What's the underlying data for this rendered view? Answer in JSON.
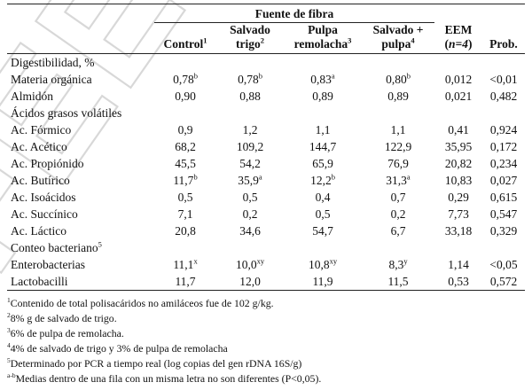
{
  "watermark": "FEED",
  "table": {
    "group_header": "Fuente de fibra",
    "columns": [
      {
        "text": "Control",
        "sup": "1"
      },
      {
        "text": "Salvado trigo",
        "line1": "Salvado",
        "line2": "trigo",
        "sup": "2"
      },
      {
        "text": "Pulpa remolacha",
        "line1": "Pulpa",
        "line2": "remolacha",
        "sup": "3"
      },
      {
        "text": "Salvado + pulpa",
        "line1": "Salvado +",
        "line2": "pulpa",
        "sup": "4"
      },
      {
        "text": "EEM (n=4)",
        "line1": "EEM",
        "line2": "n=4"
      },
      {
        "text": "Prob."
      }
    ],
    "sections": [
      {
        "title": "Digestibilidad, %",
        "title_sup": "",
        "rows": [
          {
            "label": "Materia orgánica",
            "cells": [
              {
                "v": "0,78",
                "s": "b"
              },
              {
                "v": "0,78",
                "s": "b"
              },
              {
                "v": "0,83",
                "s": "a"
              },
              {
                "v": "0,80",
                "s": "b"
              },
              {
                "v": "0,012",
                "s": ""
              },
              {
                "v": "<0,01",
                "s": ""
              }
            ]
          },
          {
            "label": "Almidón",
            "cells": [
              {
                "v": "0,90",
                "s": ""
              },
              {
                "v": "0,88",
                "s": ""
              },
              {
                "v": "0,89",
                "s": ""
              },
              {
                "v": "0,89",
                "s": ""
              },
              {
                "v": "0,021",
                "s": ""
              },
              {
                "v": "0,482",
                "s": ""
              }
            ]
          }
        ]
      },
      {
        "title": "Ácidos grasos volátiles",
        "title_sup": "",
        "rows": [
          {
            "label": "Ac. Fórmico",
            "cells": [
              {
                "v": "0,9",
                "s": ""
              },
              {
                "v": "1,2",
                "s": ""
              },
              {
                "v": "1,1",
                "s": ""
              },
              {
                "v": "1,1",
                "s": ""
              },
              {
                "v": "0,41",
                "s": ""
              },
              {
                "v": "0,924",
                "s": ""
              }
            ]
          },
          {
            "label": "Ac. Acético",
            "cells": [
              {
                "v": "68,2",
                "s": ""
              },
              {
                "v": "109,2",
                "s": ""
              },
              {
                "v": "144,7",
                "s": ""
              },
              {
                "v": "122,9",
                "s": ""
              },
              {
                "v": "35,95",
                "s": ""
              },
              {
                "v": "0,172",
                "s": ""
              }
            ]
          },
          {
            "label": "Ac. Propiónido",
            "cells": [
              {
                "v": "45,5",
                "s": ""
              },
              {
                "v": "54,2",
                "s": ""
              },
              {
                "v": "65,9",
                "s": ""
              },
              {
                "v": "76,9",
                "s": ""
              },
              {
                "v": "20,82",
                "s": ""
              },
              {
                "v": "0,234",
                "s": ""
              }
            ]
          },
          {
            "label": "Ac. Butírico",
            "cells": [
              {
                "v": "11,7",
                "s": "b"
              },
              {
                "v": "35,9",
                "s": "a"
              },
              {
                "v": "12,2",
                "s": "b"
              },
              {
                "v": "31,3",
                "s": "a"
              },
              {
                "v": "10,83",
                "s": ""
              },
              {
                "v": "0,027",
                "s": ""
              }
            ]
          },
          {
            "label": "Ac. Isoácidos",
            "cells": [
              {
                "v": "0,5",
                "s": ""
              },
              {
                "v": "0,5",
                "s": ""
              },
              {
                "v": "0,4",
                "s": ""
              },
              {
                "v": "0,7",
                "s": ""
              },
              {
                "v": "0,29",
                "s": ""
              },
              {
                "v": "0,615",
                "s": ""
              }
            ]
          },
          {
            "label": "Ac. Succínico",
            "cells": [
              {
                "v": "7,1",
                "s": ""
              },
              {
                "v": "0,2",
                "s": ""
              },
              {
                "v": "0,5",
                "s": ""
              },
              {
                "v": "0,2",
                "s": ""
              },
              {
                "v": "7,73",
                "s": ""
              },
              {
                "v": "0,547",
                "s": ""
              }
            ]
          },
          {
            "label": "Ac. Láctico",
            "cells": [
              {
                "v": "20,8",
                "s": ""
              },
              {
                "v": "34,6",
                "s": ""
              },
              {
                "v": "54,7",
                "s": ""
              },
              {
                "v": "6,7",
                "s": ""
              },
              {
                "v": "33,18",
                "s": ""
              },
              {
                "v": "0,329",
                "s": ""
              }
            ]
          }
        ]
      },
      {
        "title": "Conteo bacteriano",
        "title_sup": "5",
        "rows": [
          {
            "label": "Enterobacterias",
            "cells": [
              {
                "v": "11,1",
                "s": "x"
              },
              {
                "v": "10,0",
                "s": "xy"
              },
              {
                "v": "10,8",
                "s": "xy"
              },
              {
                "v": "8,3",
                "s": "y"
              },
              {
                "v": "1,14",
                "s": ""
              },
              {
                "v": "<0,05",
                "s": ""
              }
            ]
          },
          {
            "label": "Lactobacilli",
            "cells": [
              {
                "v": "11,7",
                "s": ""
              },
              {
                "v": "12,0",
                "s": ""
              },
              {
                "v": "11,9",
                "s": ""
              },
              {
                "v": "11,5",
                "s": ""
              },
              {
                "v": "0,53",
                "s": ""
              },
              {
                "v": "0,572",
                "s": ""
              }
            ]
          }
        ]
      }
    ]
  },
  "footnotes": [
    {
      "mark": "1",
      "text": "Contenido de total polisacáridos no amiláceos fue de 102 g/kg."
    },
    {
      "mark": "2",
      "text": "8% g de salvado de trigo."
    },
    {
      "mark": "3",
      "text": "6% de pulpa de remolacha."
    },
    {
      "mark": "4",
      "text": "4% de salvado de trigo y 3% de pulpa de remolacha"
    },
    {
      "mark": "5",
      "text": "Determinado por PCR a tiempo real (log copias del gen rDNA 16S/g)"
    },
    {
      "mark": "a-b",
      "text": "Medias dentro de una fila con un misma letra no son diferentes (P<0,05)."
    }
  ]
}
